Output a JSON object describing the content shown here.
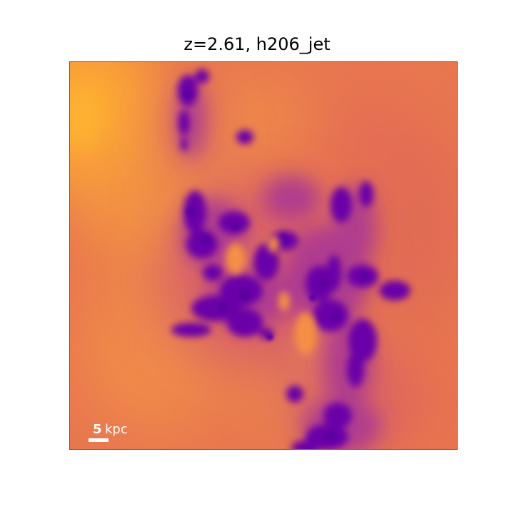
{
  "figure": {
    "title": "z=2.61, h206_jet",
    "colormap": "plasma",
    "colors": {
      "background": "#e8764f",
      "bright": "#fca636",
      "warm": "#f0894a",
      "dark": "#6a00a8",
      "mid": "#9c2fa0"
    }
  },
  "scale_bar": {
    "value": "5",
    "unit": "kpc",
    "color": "#ffffff"
  }
}
